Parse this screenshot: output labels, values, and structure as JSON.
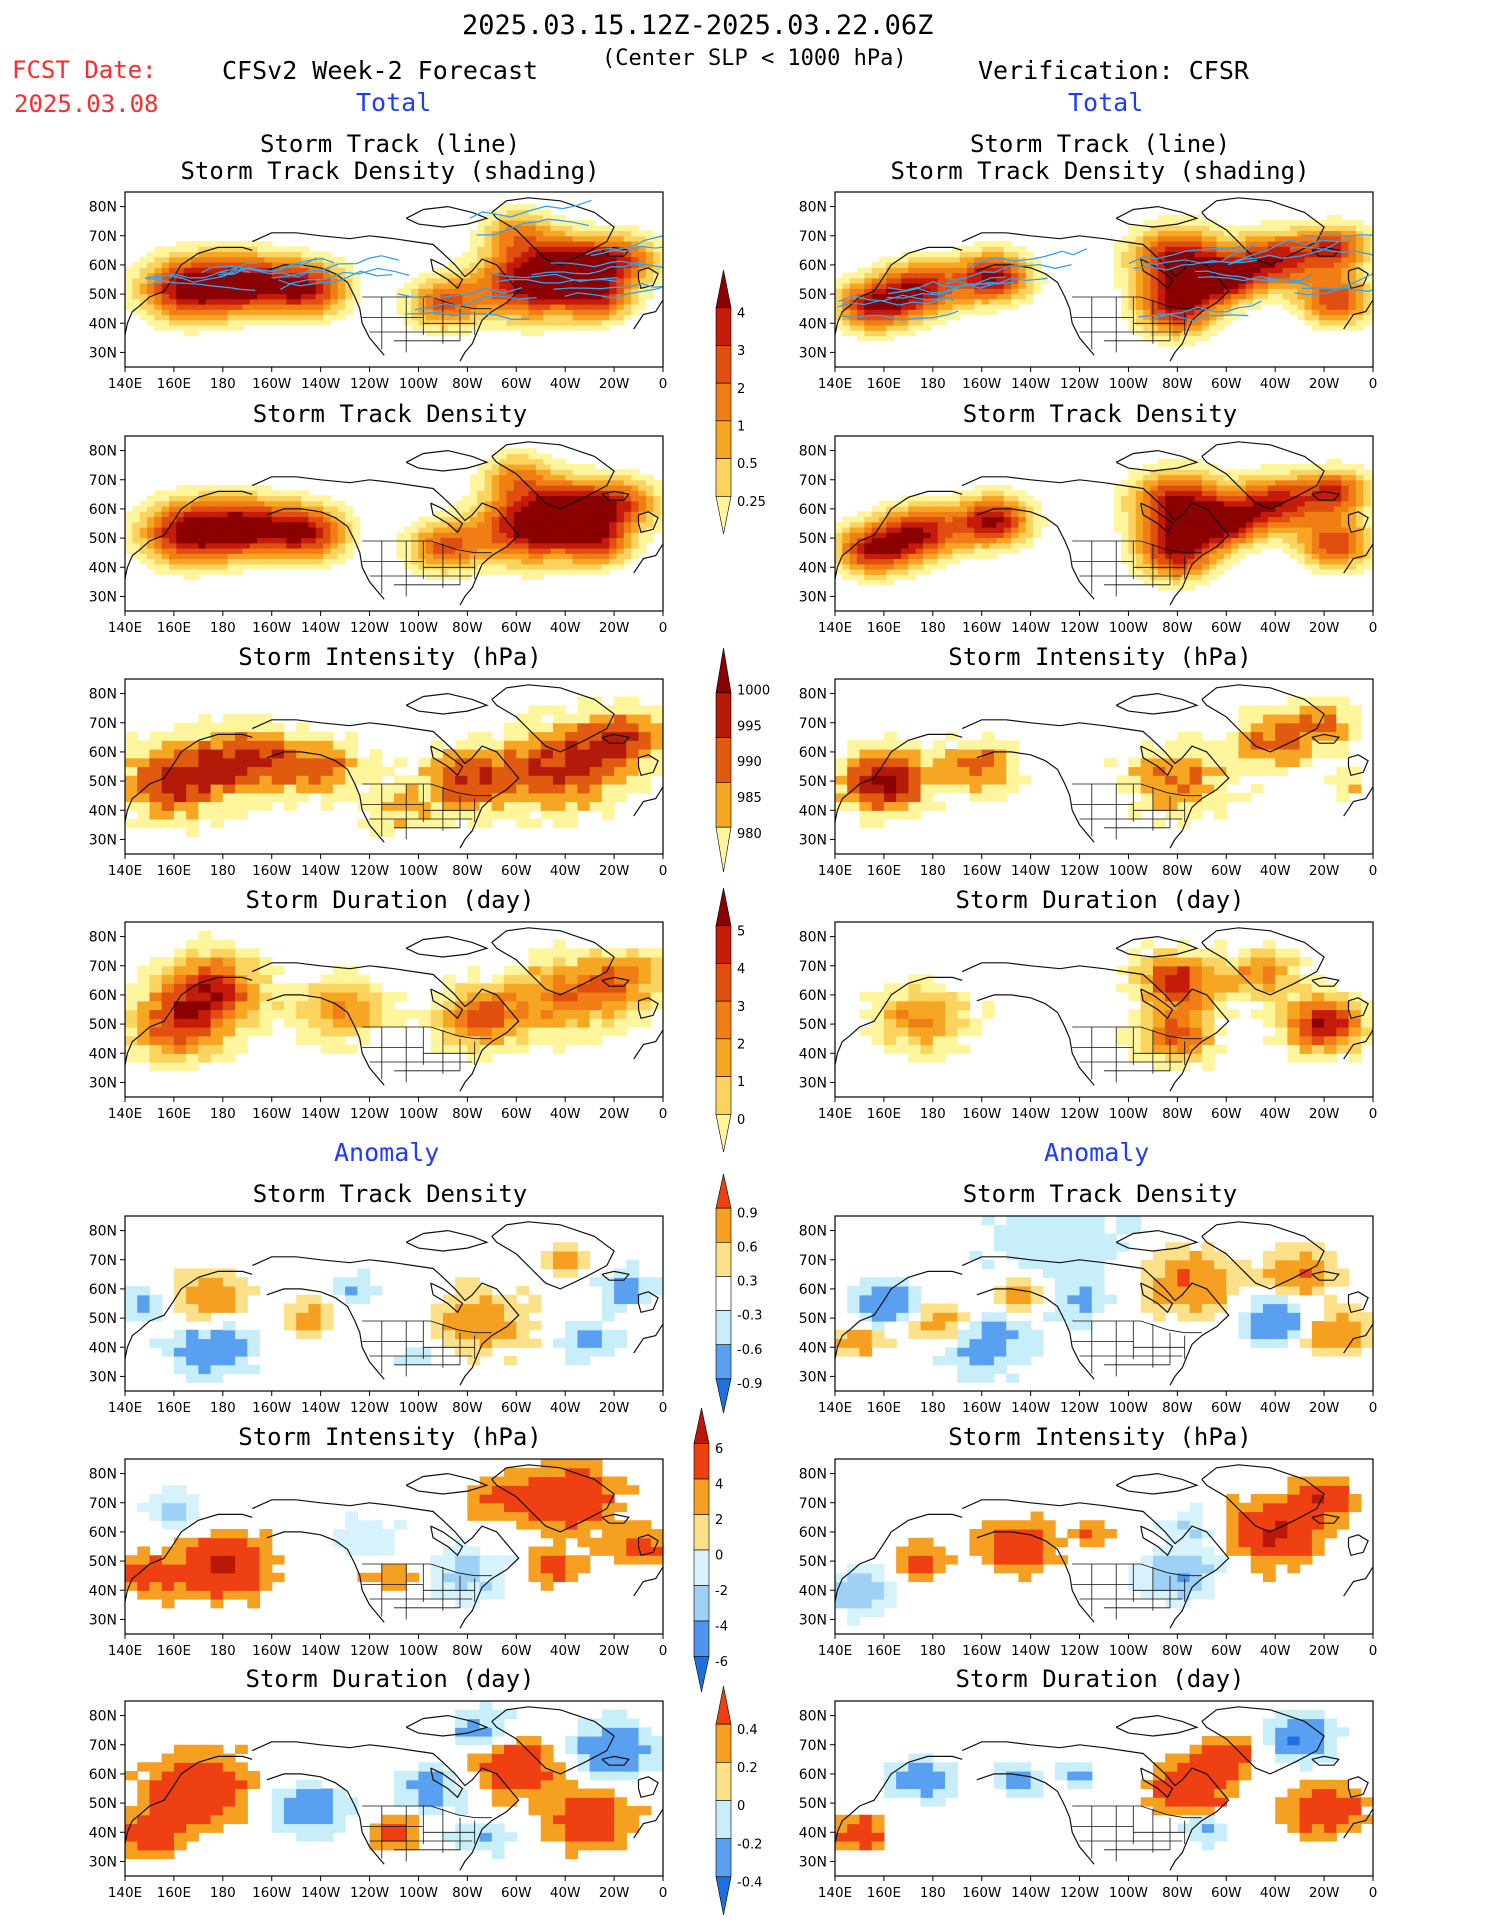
{
  "header": {
    "period": "2025.03.15.12Z-2025.03.22.06Z",
    "fcst_label": "FCST Date:",
    "fcst_date": "2025.03.08",
    "left_title": "CFSv2 Week-2 Forecast",
    "criterion": "(Center SLP < 1000 hPa)",
    "right_title": "Verification: CFSR"
  },
  "sections": {
    "total": "Total",
    "anomaly": "Anomaly"
  },
  "panel_titles": {
    "track_line": "Storm Track (line)",
    "track_shading": "Storm Track Density (shading)",
    "density": "Storm Track Density",
    "intensity": "Storm Intensity (hPa)",
    "duration": "Storm Duration (day)"
  },
  "axes": {
    "lat": [
      "80N",
      "70N",
      "60N",
      "50N",
      "40N",
      "30N"
    ],
    "lon": [
      "140E",
      "160E",
      "180",
      "160W",
      "140W",
      "120W",
      "100W",
      "80W",
      "60W",
      "40W",
      "20W",
      "0"
    ]
  },
  "colorbars": {
    "density_total": [
      "4",
      "3",
      "2",
      "1",
      "0.5",
      "0.25"
    ],
    "intensity_total": [
      "1000",
      "995",
      "990",
      "985",
      "980"
    ],
    "duration_total": [
      "5",
      "4",
      "3",
      "2",
      "1",
      "0"
    ],
    "density_anom": [
      "0.9",
      "0.6",
      "0.3",
      "-0.3",
      "-0.6",
      "-0.9"
    ],
    "intensity_anom": [
      "6",
      "4",
      "2",
      "0",
      "-2",
      "-4",
      "-6"
    ],
    "duration_anom": [
      "0.4",
      "0.2",
      "0",
      "-0.2",
      "-0.4"
    ]
  },
  "colors": {
    "total_density": [
      "#fff59d",
      "#fbd35f",
      "#f6a623",
      "#f07e14",
      "#e04f10",
      "#c41b0a",
      "#8b0000"
    ],
    "total_intensity": [
      "#fff59d",
      "#f6a623",
      "#e05a10",
      "#b41a0a",
      "#8b0000"
    ],
    "total_duration": [
      "#fff59d",
      "#fbd35f",
      "#f6a623",
      "#f07e14",
      "#e04f10",
      "#c41b0a",
      "#8b0000"
    ],
    "anom_density": [
      "#1f6fe0",
      "#5aa0f0",
      "#c8eefa",
      "#ffffff",
      "#fde08a",
      "#f5a020",
      "#ee4012"
    ],
    "anom_intensity": [
      "#1f6fe0",
      "#4f95ee",
      "#9fd0f6",
      "#d6f2fb",
      "#fde08a",
      "#f5a020",
      "#ee4012",
      "#b81808"
    ],
    "anom_duration": [
      "#1f6fe0",
      "#5aa0f0",
      "#c8eefa",
      "#fde08a",
      "#f5a020",
      "#ee4012"
    ],
    "track": "#3aa0e8"
  }
}
